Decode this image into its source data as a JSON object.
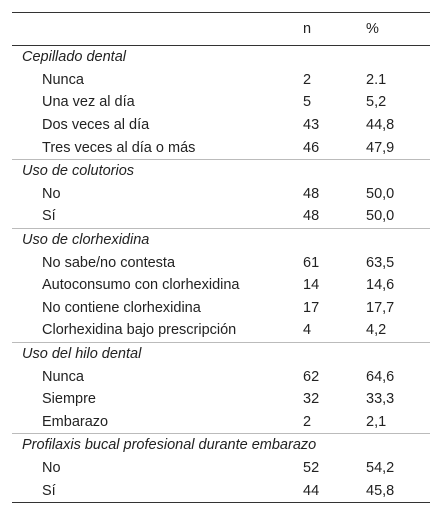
{
  "table": {
    "header": {
      "n": "n",
      "pct": "%"
    },
    "sections": [
      {
        "title": "Cepillado dental",
        "rows": [
          [
            "Nunca",
            "2",
            "2.1"
          ],
          [
            "Una vez al día",
            "5",
            "5,2"
          ],
          [
            "Dos veces al día",
            "43",
            "44,8"
          ],
          [
            "Tres veces al día o más",
            "46",
            "47,9"
          ]
        ]
      },
      {
        "title": "Uso de colutorios",
        "rows": [
          [
            "No",
            "48",
            "50,0"
          ],
          [
            "Sí",
            "48",
            "50,0"
          ]
        ]
      },
      {
        "title": "Uso de clorhexidina",
        "rows": [
          [
            "No sabe/no contesta",
            "61",
            "63,5"
          ],
          [
            "Autoconsumo con clorhexidina",
            "14",
            "14,6"
          ],
          [
            "No contiene clorhexidina",
            "17",
            "17,7"
          ],
          [
            "Clorhexidina bajo prescripción",
            "4",
            "4,2"
          ]
        ]
      },
      {
        "title": "Uso del hilo dental",
        "rows": [
          [
            "Nunca",
            "62",
            "64,6"
          ],
          [
            "Siempre",
            "32",
            "33,3"
          ],
          [
            "Embarazo",
            "2",
            "2,1"
          ]
        ]
      },
      {
        "title": "Profilaxis bucal profesional durante embarazo",
        "rows": [
          [
            "No",
            "52",
            "54,2"
          ],
          [
            "Sí",
            "44",
            "45,8"
          ]
        ]
      }
    ]
  }
}
